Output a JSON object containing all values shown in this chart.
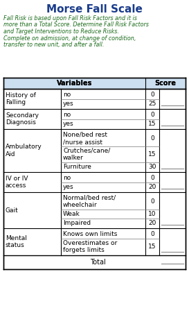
{
  "title": "Morse Fall Scale",
  "subtitle_lines": [
    "Fall Risk is based upon Fall Risk Factors and it is",
    "more than a Total Score. Determine Fall Risk Factors",
    "and Target Interventions to Reduce Risks.",
    "Complete on admission, at change of condition,",
    "transfer to new unit, and after a fall."
  ],
  "header": [
    "Variables",
    "Score"
  ],
  "rows": [
    {
      "category": "History of\nFalling",
      "options": [
        [
          "no",
          "0"
        ],
        [
          "yes",
          "25"
        ]
      ],
      "score_line_at": "bottom"
    },
    {
      "category": "Secondary\nDiagnosis",
      "options": [
        [
          "no",
          "0"
        ],
        [
          "yes",
          "15"
        ]
      ],
      "score_line_at": "bottom"
    },
    {
      "category": "Ambulatory\nAid",
      "options": [
        [
          "None/bed rest\n/nurse assist",
          "0"
        ],
        [
          "Crutches/cane/\nwalker",
          "15"
        ],
        [
          "Furniture",
          "30"
        ]
      ],
      "score_line_at": "middle"
    },
    {
      "category": "IV or IV\naccess",
      "options": [
        [
          "no",
          "0"
        ],
        [
          "yes",
          "20"
        ]
      ],
      "score_line_at": "bottom"
    },
    {
      "category": "Gait",
      "options": [
        [
          "Normal/bed rest/\nwheelchair",
          "0"
        ],
        [
          "Weak",
          "10"
        ],
        [
          "Impaired",
          "20"
        ]
      ],
      "score_line_at": "middle"
    },
    {
      "category": "Mental\nstatus",
      "options": [
        [
          "Knows own limits",
          "0"
        ],
        [
          "Overestimates or\nforgets limits",
          "15"
        ]
      ],
      "score_line_at": "bottom"
    }
  ],
  "total_label": "Total",
  "bg_color": "#ffffff",
  "title_color": "#1a3c8b",
  "subtitle_color": "#1a6b1a",
  "table_text_color": "#000000",
  "border_color": "#000000",
  "line_color": "#888888",
  "header_bg": "#ccdff0",
  "title_fontsize": 11,
  "subtitle_fontsize": 5.8,
  "table_fontsize": 6.5,
  "fig_width": 2.73,
  "fig_height": 4.67,
  "dpi": 100
}
